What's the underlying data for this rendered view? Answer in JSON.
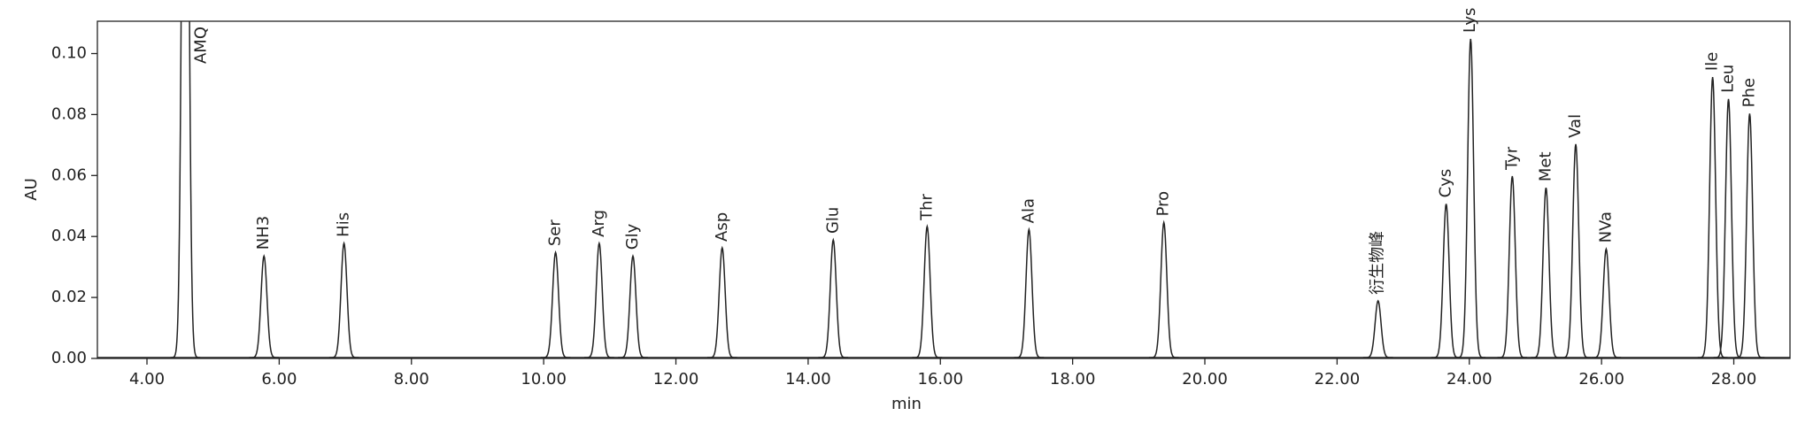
{
  "chart_data": {
    "type": "chromatogram",
    "xlabel": "min",
    "ylabel": "AU",
    "xlim": [
      3.25,
      28.85
    ],
    "ylim": [
      0,
      0.1106
    ],
    "xticks": [
      {
        "value": 4,
        "label": "4.00"
      },
      {
        "value": 6,
        "label": "6.00"
      },
      {
        "value": 8,
        "label": "8.00"
      },
      {
        "value": 10,
        "label": "10.00"
      },
      {
        "value": 12,
        "label": "12.00"
      },
      {
        "value": 14,
        "label": "14.00"
      },
      {
        "value": 16,
        "label": "16.00"
      },
      {
        "value": 18,
        "label": "18.00"
      },
      {
        "value": 20,
        "label": "20.00"
      },
      {
        "value": 22,
        "label": "22.00"
      },
      {
        "value": 24,
        "label": "24.00"
      },
      {
        "value": 26,
        "label": "26.00"
      },
      {
        "value": 28,
        "label": "28.00"
      }
    ],
    "yticks": [
      {
        "value": 0,
        "label": "0.00"
      },
      {
        "value": 0.02,
        "label": "0.02"
      },
      {
        "value": 0.04,
        "label": "0.04"
      },
      {
        "value": 0.06,
        "label": "0.06"
      },
      {
        "value": 0.08,
        "label": "0.08"
      },
      {
        "value": 0.1,
        "label": "0.10"
      }
    ],
    "color": "#222222",
    "peaks": [
      {
        "name": "AMQ",
        "time": 4.58,
        "height": 0.3
      },
      {
        "name": "NH3",
        "time": 5.77,
        "height": 0.0333
      },
      {
        "name": "His",
        "time": 6.98,
        "height": 0.0375
      },
      {
        "name": "Ser",
        "time": 10.18,
        "height": 0.0345
      },
      {
        "name": "Arg",
        "time": 10.84,
        "height": 0.0375
      },
      {
        "name": "Gly",
        "time": 11.35,
        "height": 0.0333
      },
      {
        "name": "Asp",
        "time": 12.7,
        "height": 0.036
      },
      {
        "name": "Glu",
        "time": 14.38,
        "height": 0.0386
      },
      {
        "name": "Thr",
        "time": 15.8,
        "height": 0.043
      },
      {
        "name": "Ala",
        "time": 17.34,
        "height": 0.042
      },
      {
        "name": "Pro",
        "time": 19.38,
        "height": 0.0443
      },
      {
        "name": "衍生物峰",
        "time": 22.62,
        "height": 0.0186
      },
      {
        "name": "Cys",
        "time": 23.65,
        "height": 0.0504
      },
      {
        "name": "Lys",
        "time": 24.02,
        "height": 0.1045
      },
      {
        "name": "Tyr",
        "time": 24.65,
        "height": 0.0595
      },
      {
        "name": "Met",
        "time": 25.16,
        "height": 0.0557
      },
      {
        "name": "Val",
        "time": 25.61,
        "height": 0.07
      },
      {
        "name": "NVa",
        "time": 26.07,
        "height": 0.0356
      },
      {
        "name": "Ile",
        "time": 27.68,
        "height": 0.092
      },
      {
        "name": "Leu",
        "time": 27.92,
        "height": 0.0848
      },
      {
        "name": "Phe",
        "time": 28.24,
        "height": 0.08
      }
    ]
  }
}
